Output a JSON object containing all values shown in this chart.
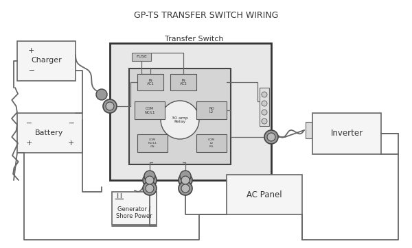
{
  "title": "GP-TS TRANSFER SWITCH WIRING",
  "ts_label": "Transfer Switch",
  "bg_color": "#ffffff",
  "line_color": "#666666",
  "box_fill": "#f5f5f5",
  "box_edge": "#666666",
  "ts_outer_fill": "#e8e8e8",
  "ts_outer_edge": "#333333",
  "ts_inner_fill": "#d5d5d5",
  "ts_inner_edge": "#444444",
  "relay_fill": "#efefef",
  "terminal_fill": "#c8c8c8",
  "connector_fill": "#999999",
  "connector_edge": "#444444",
  "led_fill": "#dddddd",
  "led_edge": "#555555",
  "charger_label": "Charger",
  "battery_label": "Battery",
  "inverter_label": "Inverter",
  "ac_panel_label": "AC Panel",
  "gen_label": "Generator /\nShore Power",
  "relay_label": "30 amp\nRelay",
  "fuse_label": "FUSE"
}
